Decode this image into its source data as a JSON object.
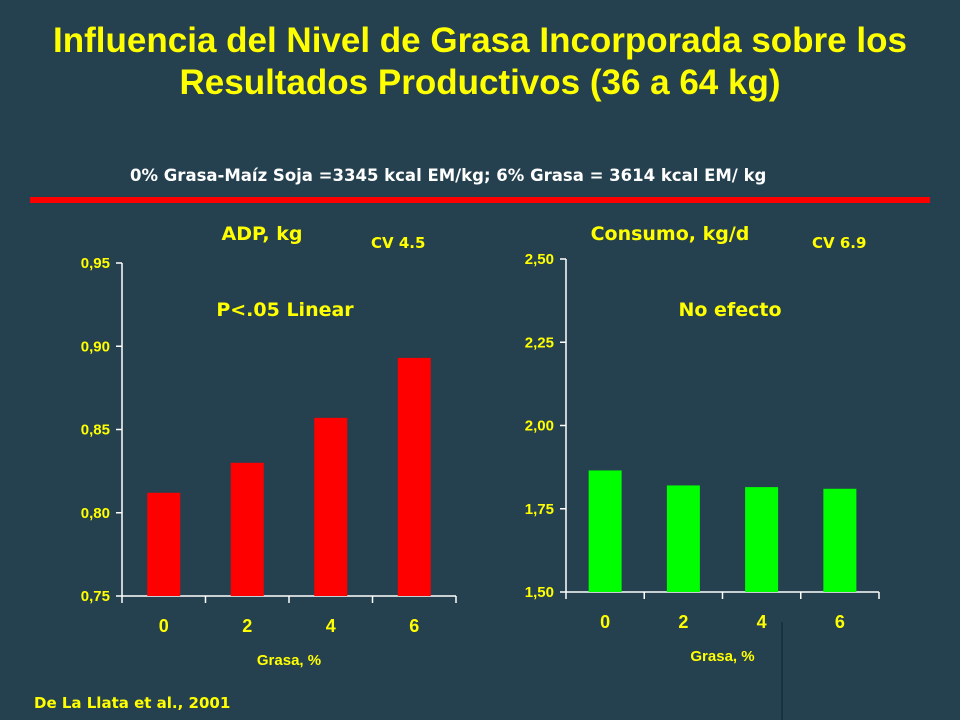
{
  "title": "Influencia del Nivel de Grasa Incorporada sobre los Resultados Productivos (36 a 64 kg)",
  "subtitle": "0% Grasa-Maíz Soja =3345 kcal EM/kg; 6% Grasa = 3614 kcal EM/ kg",
  "citation": "De La Llata et al., 2001",
  "colors": {
    "background": "#25404f",
    "title": "#ffff00",
    "divider": "#ff0000",
    "bar_left": "#ff0000",
    "bar_right": "#00ff00",
    "chart_text": "#ffff00"
  },
  "chart_data": [
    {
      "type": "bar",
      "title": "ADP, kg",
      "cv_label": "CV 4.5",
      "annotation": "P<.05 Linear",
      "xlabel": "Grasa, %",
      "ylabel": "",
      "categories": [
        "0",
        "2",
        "4",
        "6"
      ],
      "values": [
        0.812,
        0.83,
        0.857,
        0.893
      ],
      "ylim": [
        0.75,
        0.95
      ],
      "yticks": [
        "0,75",
        "0,80",
        "0,85",
        "0,90",
        "0,95"
      ],
      "ytick_values": [
        0.75,
        0.8,
        0.85,
        0.9,
        0.95
      ],
      "bar_color": "#ff0000",
      "grid": false,
      "legend": "none"
    },
    {
      "type": "bar",
      "title": "Consumo, kg/d",
      "cv_label": "CV 6.9",
      "annotation": "No efecto",
      "xlabel": "Grasa, %",
      "ylabel": "",
      "categories": [
        "0",
        "2",
        "4",
        "6"
      ],
      "values": [
        1.865,
        1.82,
        1.815,
        1.81
      ],
      "ylim": [
        1.5,
        2.5
      ],
      "yticks": [
        "1,50",
        "1,75",
        "2,00",
        "2,25",
        "2,50"
      ],
      "ytick_values": [
        1.5,
        1.75,
        2.0,
        2.25,
        2.5
      ],
      "bar_color": "#00ff00",
      "grid": false,
      "legend": "none"
    }
  ]
}
